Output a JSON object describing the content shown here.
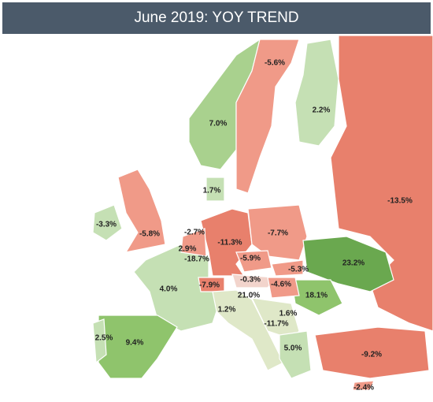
{
  "title": "June 2019: YOY TREND",
  "labels": [
    "-5.6%",
    "2.2%",
    "7.0%",
    "-13.5%",
    "1.7%",
    "-3.3%",
    "-5.8%",
    "-2.7%",
    "-11.3%",
    "-7.7%",
    "2.9%",
    "-18.7%",
    "23.2%",
    "-5.9%",
    "-5.3%",
    "-7.9%",
    "-0.3%",
    "-4.6%",
    "18.1%",
    "4.0%",
    "21.0%",
    "1.2%",
    "1.6%",
    "-11.7%",
    "2.5%",
    "9.4%",
    "5.0%",
    "-9.2%",
    "-2.4%"
  ]
}
